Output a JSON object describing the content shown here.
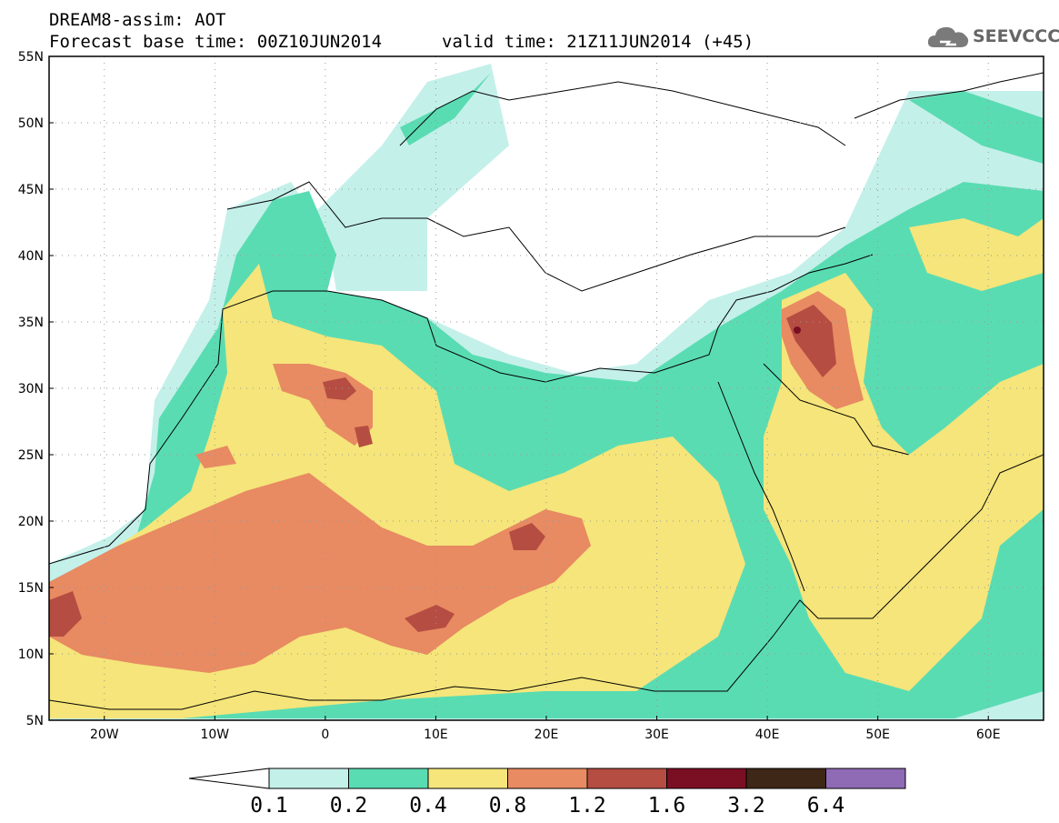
{
  "header": {
    "title": "DREAM8-assim: AOT",
    "base_time": "Forecast base time: 00Z10JUN2014",
    "valid_time": "valid time: 21Z11JUN2014 (+45)"
  },
  "logo": {
    "text": "SEEVCCC",
    "icon": "cloud-icon"
  },
  "axes": {
    "lon_range": [
      -25,
      65
    ],
    "lat_range": [
      5,
      55
    ],
    "lat_ticks": [
      {
        "v": 55,
        "label": "55N"
      },
      {
        "v": 50,
        "label": "50N"
      },
      {
        "v": 45,
        "label": "45N"
      },
      {
        "v": 40,
        "label": "40N"
      },
      {
        "v": 35,
        "label": "35N"
      },
      {
        "v": 30,
        "label": "30N"
      },
      {
        "v": 25,
        "label": "25N"
      },
      {
        "v": 20,
        "label": "20N"
      },
      {
        "v": 15,
        "label": "15N"
      },
      {
        "v": 10,
        "label": "10N"
      },
      {
        "v": 5,
        "label": "5N"
      }
    ],
    "lon_ticks": [
      {
        "v": -20,
        "label": "20W"
      },
      {
        "v": -10,
        "label": "10W"
      },
      {
        "v": 0,
        "label": "0"
      },
      {
        "v": 10,
        "label": "10E"
      },
      {
        "v": 20,
        "label": "20E"
      },
      {
        "v": 30,
        "label": "30E"
      },
      {
        "v": 40,
        "label": "40E"
      },
      {
        "v": 50,
        "label": "50E"
      },
      {
        "v": 60,
        "label": "60E"
      }
    ],
    "grid": "dotted"
  },
  "colorbar": {
    "labels": [
      "0.1",
      "0.2",
      "0.4",
      "0.8",
      "1.2",
      "1.6",
      "3.2",
      "6.4"
    ],
    "colors": [
      "#ffffff",
      "#c4f0ea",
      "#5adcb2",
      "#f5e57a",
      "#e88a62",
      "#b54d42",
      "#7a0f24",
      "#3e2717",
      "#8f6ab5"
    ]
  }
}
